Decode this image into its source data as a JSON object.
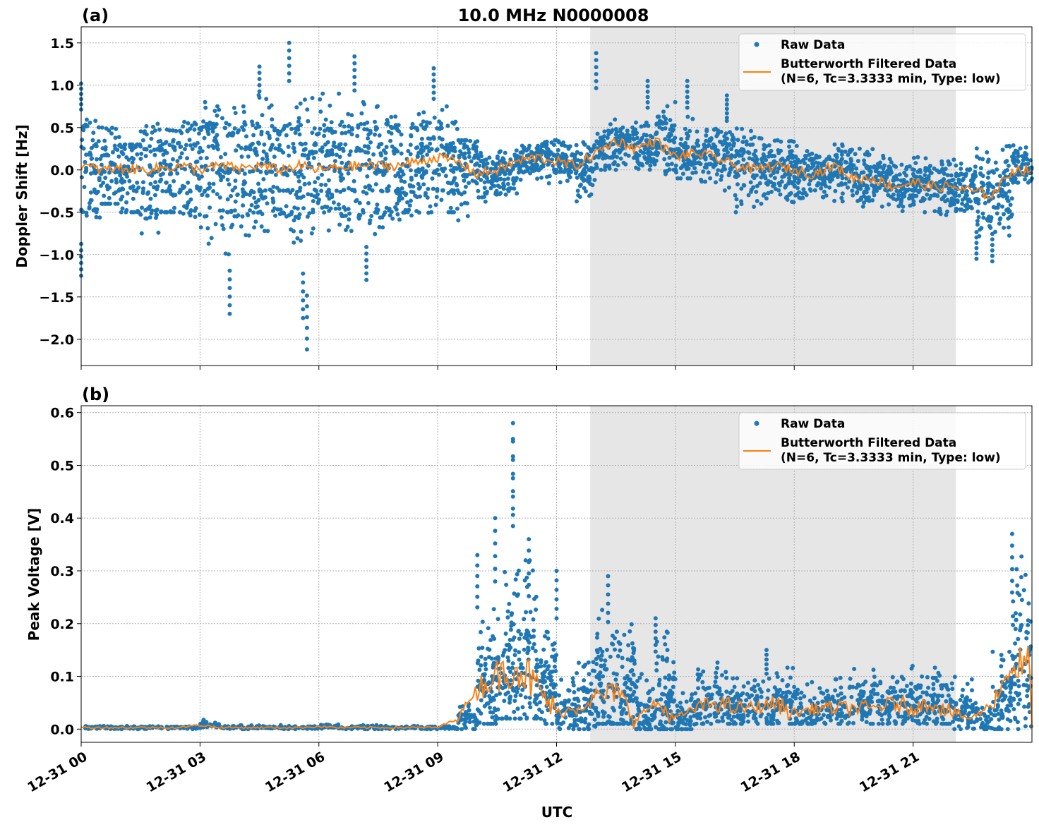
{
  "chart_data": [
    {
      "type": "scatter",
      "panel_label": "(a)",
      "title": "10.0 MHz N0000008",
      "xlabel": "",
      "ylabel": "Doppler Shift [Hz]",
      "ylim": [
        -2.31,
        1.69
      ],
      "yticks": [
        1.5,
        1.0,
        0.5,
        0.0,
        -0.5,
        -1.0,
        -1.5,
        -2.0
      ],
      "ytick_labels": [
        "1.5",
        "1.0",
        "0.5",
        "0.0",
        "−0.5",
        "−1.0",
        "−1.5",
        "−2.0"
      ],
      "grid": true,
      "legend_position": "top-right",
      "shaded_span_hours": [
        12.85,
        22.08
      ],
      "shade_color": "#e6e6e6",
      "x_hours": [
        0,
        0.5,
        1,
        1.5,
        2,
        2.5,
        3,
        3.5,
        4,
        4.5,
        5,
        5.5,
        6,
        6.5,
        7,
        7.5,
        8,
        8.5,
        9,
        9.5,
        10,
        10.5,
        11,
        11.5,
        12,
        12.5,
        13,
        13.5,
        14,
        14.5,
        15,
        15.5,
        16,
        16.5,
        17,
        17.5,
        18,
        18.5,
        19,
        19.5,
        20,
        20.5,
        21,
        21.5,
        22,
        22.5,
        23,
        23.5
      ],
      "series": [
        {
          "name": "Raw Data",
          "color": "#1f77b4",
          "low": [
            -0.6,
            -0.4,
            -0.5,
            -0.8,
            -0.5,
            -0.6,
            -0.9,
            -1.0,
            -1.0,
            -0.9,
            -1.0,
            -1.0,
            -1.0,
            -0.8,
            -0.8,
            -0.7,
            -0.6,
            -0.6,
            -0.5,
            -0.6,
            -0.4,
            -0.3,
            -0.15,
            -0.2,
            -0.15,
            -0.4,
            0.0,
            0.05,
            0.0,
            -0.05,
            -0.1,
            -0.15,
            -0.4,
            -0.5,
            -0.4,
            -0.4,
            -0.35,
            -0.4,
            -0.4,
            -0.5,
            -0.45,
            -0.5,
            -0.5,
            -0.55,
            -0.5,
            -0.8,
            -0.8,
            -0.15
          ],
          "high": [
            0.6,
            0.5,
            0.3,
            0.6,
            0.5,
            0.6,
            0.8,
            0.9,
            0.9,
            0.9,
            1.0,
            0.9,
            0.9,
            0.9,
            0.8,
            0.7,
            0.6,
            0.7,
            0.75,
            0.35,
            0.2,
            0.25,
            0.3,
            0.35,
            0.4,
            0.35,
            0.6,
            0.5,
            0.6,
            0.9,
            0.7,
            0.5,
            0.6,
            0.5,
            0.4,
            0.35,
            0.3,
            0.25,
            0.3,
            0.25,
            0.2,
            0.1,
            0.15,
            0.1,
            0.15,
            0.3,
            0.3,
            0.3
          ],
          "outliers": [
            [
              0.0,
              1.02
            ],
            [
              0.0,
              -1.25
            ],
            [
              3.75,
              -1.7
            ],
            [
              4.5,
              1.22
            ],
            [
              5.25,
              1.5
            ],
            [
              5.7,
              -2.12
            ],
            [
              5.6,
              -1.75
            ],
            [
              6.9,
              1.34
            ],
            [
              7.2,
              -1.3
            ],
            [
              8.9,
              1.2
            ],
            [
              13.0,
              1.38
            ],
            [
              14.3,
              1.05
            ],
            [
              15.3,
              1.05
            ],
            [
              16.3,
              0.88
            ],
            [
              22.6,
              -1.05
            ],
            [
              23.0,
              -1.08
            ]
          ]
        },
        {
          "name": "Butterworth Filtered Data",
          "name_line2": "(N=6, Tc=3.3333 min, Type: low)",
          "color": "#ff7f0e",
          "values": [
            0.05,
            0.0,
            0.02,
            0.0,
            0.02,
            0.05,
            0.0,
            0.05,
            0.02,
            0.05,
            0.0,
            0.05,
            0.0,
            0.03,
            0.05,
            0.05,
            0.05,
            0.1,
            0.15,
            0.1,
            -0.05,
            0.0,
            0.1,
            0.15,
            0.1,
            0.05,
            0.2,
            0.35,
            0.25,
            0.35,
            0.15,
            0.2,
            0.15,
            0.05,
            0.0,
            0.05,
            0.0,
            -0.05,
            0.05,
            -0.1,
            -0.1,
            -0.2,
            -0.15,
            -0.2,
            -0.2,
            -0.25,
            -0.3,
            0.0
          ]
        }
      ]
    },
    {
      "type": "scatter",
      "panel_label": "(b)",
      "xlabel": "UTC",
      "ylabel": "Peak Voltage [V]",
      "ylim": [
        -0.025,
        0.613
      ],
      "yticks": [
        0.0,
        0.1,
        0.2,
        0.3,
        0.4,
        0.5,
        0.6
      ],
      "ytick_labels": [
        "0.0",
        "0.1",
        "0.2",
        "0.3",
        "0.4",
        "0.5",
        "0.6"
      ],
      "xticks_hours": [
        0,
        3,
        6,
        9,
        12,
        15,
        18,
        21
      ],
      "xtick_labels": [
        "12-31 00",
        "12-31 03",
        "12-31 06",
        "12-31 09",
        "12-31 12",
        "12-31 15",
        "12-31 18",
        "12-31 21"
      ],
      "xlim_hours": [
        0,
        24
      ],
      "grid": true,
      "legend_position": "top-right",
      "shaded_span_hours": [
        12.85,
        22.08
      ],
      "x_hours": [
        0,
        0.5,
        1,
        1.5,
        2,
        2.5,
        3,
        3.5,
        4,
        4.5,
        5,
        5.5,
        6,
        6.5,
        7,
        7.5,
        8,
        8.5,
        9,
        9.5,
        10,
        10.5,
        11,
        11.5,
        12,
        12.5,
        13,
        13.5,
        14,
        14.5,
        15,
        15.5,
        16,
        16.5,
        17,
        17.5,
        18,
        18.5,
        19,
        19.5,
        20,
        20.5,
        21,
        21.5,
        22,
        22.5,
        23,
        23.5
      ],
      "series": [
        {
          "name": "Raw Data",
          "color": "#1f77b4",
          "low": [
            0,
            0,
            0,
            0,
            0,
            0,
            0,
            0,
            0,
            0,
            0,
            0,
            0,
            0,
            0,
            0,
            0,
            0,
            0,
            0,
            0.01,
            0.02,
            0.02,
            0.01,
            0.0,
            0.0,
            0.01,
            0.01,
            0.0,
            0.0,
            0.0,
            0.01,
            0.01,
            0.01,
            0.01,
            0.01,
            0.01,
            0.01,
            0.01,
            0.01,
            0.01,
            0.01,
            0.01,
            0.01,
            0.0,
            0.0,
            0.0,
            0.0
          ],
          "high": [
            0.006,
            0.006,
            0.006,
            0.006,
            0.006,
            0.006,
            0.018,
            0.006,
            0.008,
            0.006,
            0.008,
            0.008,
            0.01,
            0.008,
            0.008,
            0.006,
            0.006,
            0.006,
            0.006,
            0.05,
            0.25,
            0.3,
            0.35,
            0.2,
            0.1,
            0.13,
            0.25,
            0.2,
            0.12,
            0.2,
            0.1,
            0.12,
            0.13,
            0.1,
            0.1,
            0.12,
            0.1,
            0.09,
            0.1,
            0.12,
            0.1,
            0.12,
            0.1,
            0.12,
            0.1,
            0.06,
            0.15,
            0.35
          ],
          "outliers": [
            [
              10.0,
              0.33
            ],
            [
              10.45,
              0.4
            ],
            [
              10.9,
              0.58
            ],
            [
              10.9,
              0.55
            ],
            [
              11.3,
              0.36
            ],
            [
              12.0,
              0.3
            ],
            [
              13.3,
              0.29
            ],
            [
              14.5,
              0.21
            ],
            [
              17.3,
              0.15
            ],
            [
              23.5,
              0.37
            ]
          ]
        },
        {
          "name": "Butterworth Filtered Data",
          "name_line2": "(N=6, Tc=3.3333 min, Type: low)",
          "color": "#ff7f0e",
          "values": [
            0.003,
            0.003,
            0.003,
            0.003,
            0.003,
            0.003,
            0.008,
            0.003,
            0.003,
            0.003,
            0.003,
            0.003,
            0.005,
            0.003,
            0.003,
            0.003,
            0.003,
            0.003,
            0.003,
            0.02,
            0.08,
            0.1,
            0.12,
            0.08,
            0.03,
            0.04,
            0.06,
            0.07,
            0.02,
            0.05,
            0.02,
            0.04,
            0.05,
            0.04,
            0.04,
            0.05,
            0.03,
            0.04,
            0.04,
            0.04,
            0.04,
            0.05,
            0.04,
            0.05,
            0.03,
            0.02,
            0.05,
            0.12
          ]
        }
      ]
    }
  ]
}
